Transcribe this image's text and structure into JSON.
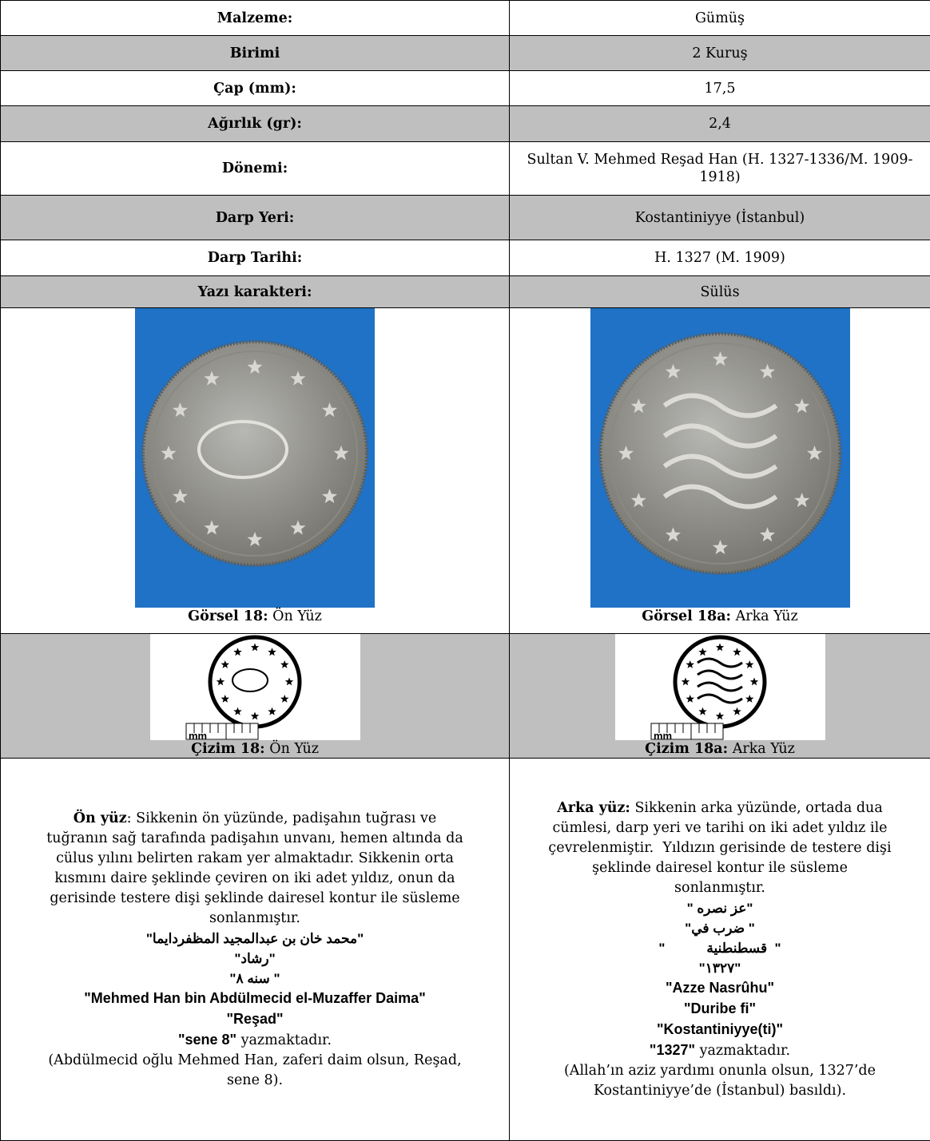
{
  "table": {
    "rows": [
      [
        "Malzeme:",
        "Gümüş"
      ],
      [
        "Birimi",
        "2 Kuruş"
      ],
      [
        "Çap (mm):",
        "17,5"
      ],
      [
        "Ağırlık (gr):",
        "2,4"
      ],
      [
        "Dönemi:",
        "Sultan V. Mehmed Reşad Han (H. 1327-1336/M. 1909-1918)"
      ],
      [
        "Darp Yeri:",
        "Kostantiniyye (İstanbul)"
      ],
      [
        "Darp Tarihi:",
        "H. 1327 (M. 1909)"
      ],
      [
        "Yazı karakteri:",
        "Sülüs"
      ]
    ]
  },
  "photos": [
    {
      "label": "Görsel 18:",
      "text": "Ön Yüz"
    },
    {
      "label": "Görsel 18a:",
      "text": "Arka Yüz"
    }
  ],
  "drawings": [
    {
      "label": "Çizim 18:",
      "text": "Ön Yüz",
      "scale_label": "mm"
    },
    {
      "label": "Çizim 18a:",
      "text": "Arka Yüz",
      "scale_label": "mm"
    }
  ],
  "descriptions": [
    {
      "title": "Ön yüz",
      "text_lines": [
        ": Sikkenin ön yüzünde, padişahın tuğrası ve",
        "tuğranın sağ tarafında padişahın unvanı, hemen altında da",
        "cülus yılını belirten rakam yer almaktadır. Sikkenin orta",
        "kısmını daire şeklinde çeviren on iki adet yıldız, onun da",
        "gerisinde testere dişi şeklinde dairesel kontur ile süsleme",
        "sonlanmıştır."
      ],
      "arabic": [
        "\"محمد خان بن عبدالمجيد المظفردايما\"",
        "\"رشاد\"",
        "\" سنه ٨\""
      ],
      "transliteration": [
        "\"Mehmed Han bin Abdülmecid el-Muzaffer Daima\"",
        "\"Reşad\"",
        "\"sene 8\""
      ],
      "closing": " yazmaktadır.",
      "translation": [
        "(Abdülmecid oğlu Mehmed Han, zaferi daim olsun, Reşad,",
        "sene 8)."
      ]
    },
    {
      "title": "Arka yüz:",
      "text_lines": [
        " Sikkenin arka yüzünde, ortada dua",
        "cümlesi, darp yeri ve tarihi on iki adet yıldız ile",
        "çevrelenmiştir.  Yıldızın gerisinde de testere dişi",
        "şeklinde dairesel kontur ile süsleme",
        "sonlanmıştır."
      ],
      "arabic": [
        "\"عز نصره \"",
        "\" ضرب في\"",
        "\"  قسطنطنية           \"",
        "\"١٣٢٧\""
      ],
      "transliteration": [
        "\"Azze Nasrûhu\"",
        "\"Duribe fi\"",
        "\"Kostantiniyye(ti)\"",
        "\"1327\""
      ],
      "closing": " yazmaktadır.",
      "translation": [
        "(Allah’ın aziz yardımı onunla olsun, 1327’de",
        "Kostantiniyye’de (İstanbul) basıldı)."
      ]
    }
  ]
}
